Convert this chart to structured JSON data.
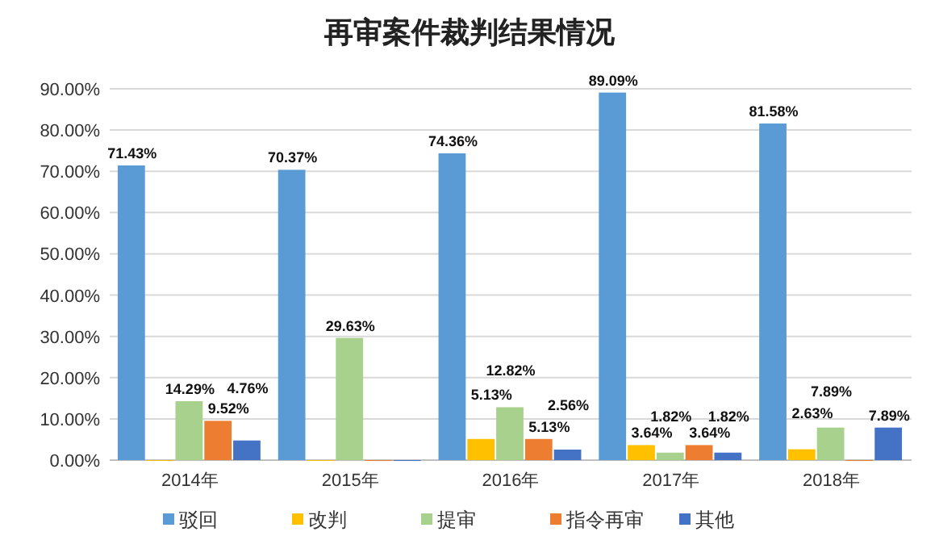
{
  "chart_data": {
    "type": "bar",
    "title": "再审案件裁判结果情况",
    "categories": [
      "2014年",
      "2015年",
      "2016年",
      "2017年",
      "2018年"
    ],
    "ylim": [
      0,
      90
    ],
    "yticks": [
      {
        "value": 0,
        "label": "0.00%"
      },
      {
        "value": 10,
        "label": "10.00%"
      },
      {
        "value": 20,
        "label": "20.00%"
      },
      {
        "value": 30,
        "label": "30.00%"
      },
      {
        "value": 40,
        "label": "40.00%"
      },
      {
        "value": 50,
        "label": "50.00%"
      },
      {
        "value": 60,
        "label": "60.00%"
      },
      {
        "value": 70,
        "label": "70.00%"
      },
      {
        "value": 80,
        "label": "80.00%"
      },
      {
        "value": 90,
        "label": "90.00%"
      }
    ],
    "grid": "y",
    "legend": "bottom",
    "series": [
      {
        "name": "驳回",
        "color": "#5b9bd5",
        "values": [
          71.43,
          70.37,
          74.36,
          89.09,
          81.58
        ],
        "value_labels": [
          "71.43%",
          "70.37%",
          "74.36%",
          "89.09%",
          "81.58%"
        ]
      },
      {
        "name": "改判",
        "color": "#ffc000",
        "values": [
          0,
          0,
          5.13,
          3.64,
          2.63
        ],
        "value_labels": [
          null,
          null,
          "5.13%",
          "3.64%",
          "2.63%"
        ]
      },
      {
        "name": "提审",
        "color": "#a9d18e",
        "values": [
          14.29,
          29.63,
          12.82,
          1.82,
          7.89
        ],
        "value_labels": [
          "14.29%",
          "29.63%",
          "12.82%",
          "1.82%",
          "7.89%"
        ]
      },
      {
        "name": "指令再审",
        "color": "#ed7d31",
        "values": [
          9.52,
          0,
          5.13,
          3.64,
          0
        ],
        "value_labels": [
          "9.52%",
          null,
          "5.13%",
          "3.64%",
          null
        ]
      },
      {
        "name": "其他",
        "color": "#4472c4",
        "values": [
          4.76,
          0,
          2.56,
          1.82,
          7.89
        ],
        "value_labels": [
          "4.76%",
          null,
          "2.56%",
          "1.82%",
          "7.89%"
        ]
      }
    ]
  }
}
